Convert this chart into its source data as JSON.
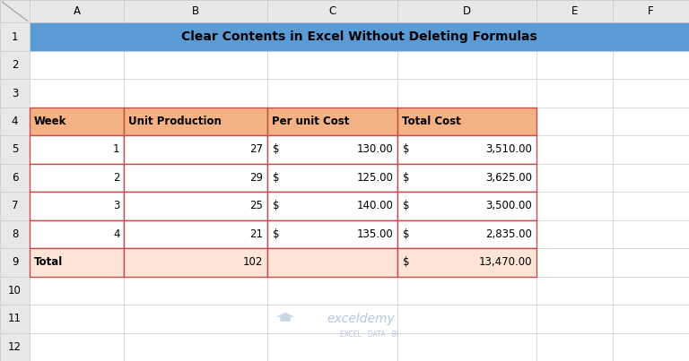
{
  "title": "Clear Contents in Excel Without Deleting Formulas",
  "title_bg": "#5B9BD5",
  "header_bg": "#F4B183",
  "data_bg": "#FFFFFF",
  "total_row_bg": "#FCE4D6",
  "row_header_bg": "#E8E8E8",
  "col_header_bg": "#E8E8E8",
  "spreadsheet_bg": "#FFFFFF",
  "outer_bg": "#C8C8C8",
  "col_headers": [
    "A",
    "B",
    "C",
    "D",
    "E",
    "F"
  ],
  "row_headers": [
    "1",
    "2",
    "3",
    "4",
    "5",
    "6",
    "7",
    "8",
    "9",
    "10",
    "11",
    "12"
  ],
  "table_headers": [
    "Week",
    "Unit Production",
    "Per unit Cost",
    "Total Cost"
  ],
  "per_unit_values": [
    "130.00",
    "125.00",
    "140.00",
    "135.00"
  ],
  "total_cost_values": [
    "3,510.00",
    "3,625.00",
    "3,500.00",
    "2,835.00"
  ],
  "week_values": [
    "1",
    "2",
    "3",
    "4"
  ],
  "unit_prod_values": [
    "27",
    "29",
    "25",
    "21"
  ],
  "total_unit": "102",
  "total_cost_total": "13,470.00",
  "logo_text": "exceldemy",
  "logo_subtext": "EXCEL · DATA · BI",
  "logo_color": "#A8BED4",
  "table_border_color": "#C0504D",
  "grid_border_color": "#CCCCCC",
  "num_rows": 12,
  "num_data_cols": 6
}
